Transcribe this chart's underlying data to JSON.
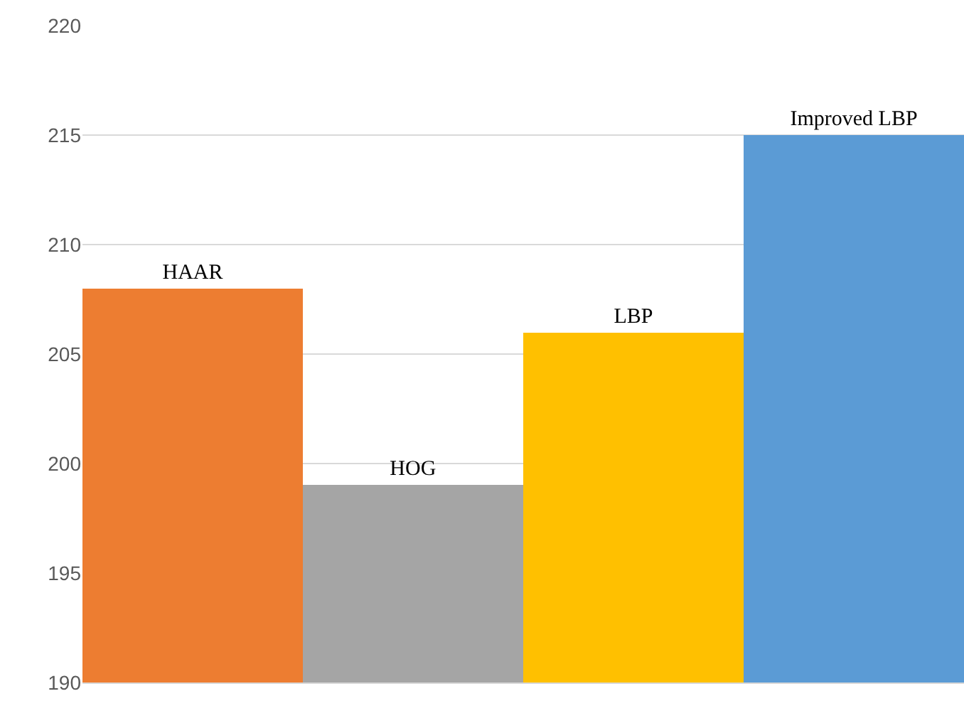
{
  "chart_data": {
    "type": "bar",
    "categories": [
      "HAAR",
      "HOG",
      "LBP",
      "Improved LBP"
    ],
    "values": [
      208,
      199,
      206,
      215
    ],
    "colors": [
      "#ed7d31",
      "#a5a5a5",
      "#ffc000",
      "#5b9bd5"
    ],
    "ylim": [
      190,
      220
    ],
    "yticks": [
      190,
      195,
      200,
      205,
      210,
      215,
      220
    ],
    "grid": "y",
    "tick_labels": "y"
  }
}
